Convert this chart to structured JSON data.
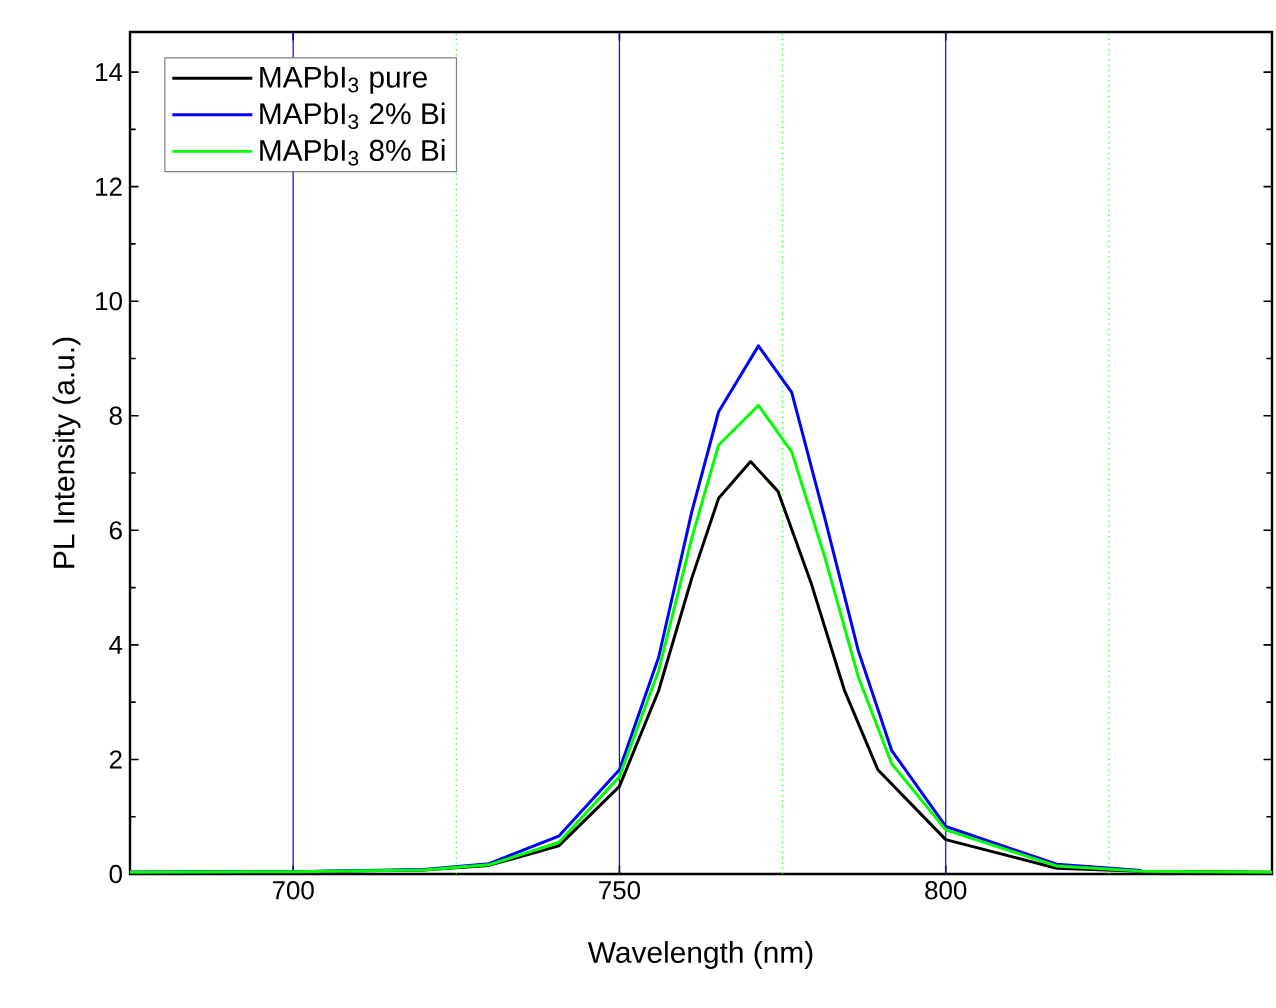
{
  "chart_data": {
    "type": "line",
    "xlabel": "Wavelength (nm)",
    "ylabel": "PL Intensity (a.u.)",
    "xlim": [
      675,
      850
    ],
    "ylim": [
      0,
      14.7
    ],
    "xticks": [
      700,
      750,
      800
    ],
    "yticks": [
      0,
      2,
      4,
      6,
      8,
      10,
      12,
      14
    ],
    "legend": "top left",
    "line_style": "solid",
    "marker": "none",
    "ref_lines": [
      {
        "axis": "x",
        "value": 700,
        "color": "#0000ff",
        "line_style": "solid"
      },
      {
        "axis": "x",
        "value": 750,
        "color": "#0000ff",
        "line_style": "solid"
      },
      {
        "axis": "x",
        "value": 800,
        "color": "#0000ff",
        "line_style": "solid"
      },
      {
        "axis": "x",
        "value": 725,
        "color": "#00ff00",
        "line_style": "dotted"
      },
      {
        "axis": "x",
        "value": 775,
        "color": "#00ff00",
        "line_style": "dotted"
      },
      {
        "axis": "x",
        "value": 825,
        "color": "#00ff00",
        "line_style": "dotted"
      }
    ],
    "series": [
      {
        "name": "MAPbI$_{3}$ pure",
        "color": "#000000",
        "x": [
          675,
          700,
          720,
          730,
          740.7,
          750,
          756,
          761.1,
          765.2,
          770.1,
          774.3,
          779.4,
          784.5,
          789.6,
          800,
          817,
          830,
          850
        ],
        "values": [
          0.03,
          0.04,
          0.07,
          0.15,
          0.49,
          1.53,
          3.2,
          5.17,
          6.56,
          7.2,
          6.68,
          5.07,
          3.2,
          1.82,
          0.6,
          0.1,
          0.05,
          0.03
        ]
      },
      {
        "name": "MAPbI$_{3}$ 2% Bi",
        "color": "#0000ff",
        "x": [
          675,
          700,
          720,
          730,
          740.7,
          750,
          756,
          761.1,
          765.2,
          771.3,
          776.4,
          781.5,
          786.6,
          791.7,
          800,
          817,
          830
        ],
        "values": [
          0.03,
          0.04,
          0.08,
          0.18,
          0.66,
          1.82,
          3.78,
          6.33,
          8.07,
          9.22,
          8.41,
          6.2,
          3.9,
          2.16,
          0.83,
          0.17,
          0.06
        ]
      },
      {
        "name": "MAPbI$_{3}$ 8% Bi",
        "color": "#00ff00",
        "x": [
          675,
          700,
          720,
          730,
          740.7,
          750,
          756,
          761.1,
          765.2,
          771.3,
          776.4,
          781.5,
          786.6,
          791.7,
          800,
          817,
          830,
          850
        ],
        "values": [
          0.03,
          0.04,
          0.07,
          0.16,
          0.55,
          1.7,
          3.55,
          5.87,
          7.49,
          8.18,
          7.37,
          5.52,
          3.44,
          1.93,
          0.77,
          0.14,
          0.05,
          0.03
        ]
      }
    ]
  }
}
